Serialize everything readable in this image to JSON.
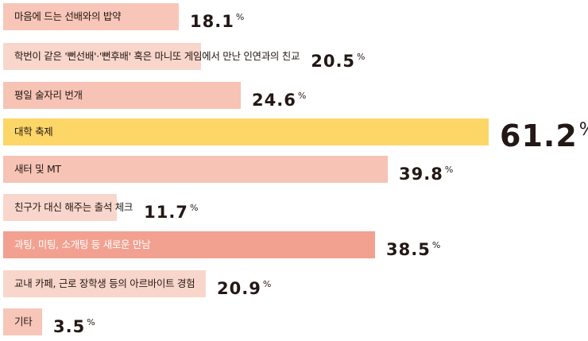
{
  "chart_data": {
    "type": "bar",
    "orientation": "horizontal",
    "unit": "%",
    "categories": [
      "마음에 드는 선배와의 밥약",
      "학번이 같은 '뻔선배'·'뻔후배' 혹은 마니또 게임에서 만난 인연과의 친교",
      "평일 술자리 번개",
      "대학 축제",
      "새터 및 MT",
      "친구가 대신 해주는 출석 체크",
      "과팅, 미팅, 소개팅 등 새로운 만남",
      "교내 카페, 근로 장학생 등의 아르바이트 경험",
      "기타"
    ],
    "values": [
      18.1,
      20.5,
      24.6,
      61.2,
      39.8,
      11.7,
      38.5,
      20.9,
      3.5
    ],
    "value_labels": [
      "18.1",
      "20.5",
      "24.6",
      "61.2",
      "39.8",
      "11.7",
      "38.5",
      "20.9",
      "3.5"
    ],
    "percent_sign": "%",
    "colors": [
      "#f7c6b8",
      "#f9d6cb",
      "#f6c3b5",
      "#fcd667",
      "#f6c3b5",
      "#f9d6cb",
      "#f2a191",
      "#f9d6cb",
      "#f7c6b8"
    ],
    "label_colors": [
      "#231815",
      "#231815",
      "#231815",
      "#231815",
      "#231815",
      "#231815",
      "#ffffff",
      "#231815",
      "#231815"
    ],
    "highlight_index": 3,
    "xlabel": "",
    "ylabel": ""
  }
}
